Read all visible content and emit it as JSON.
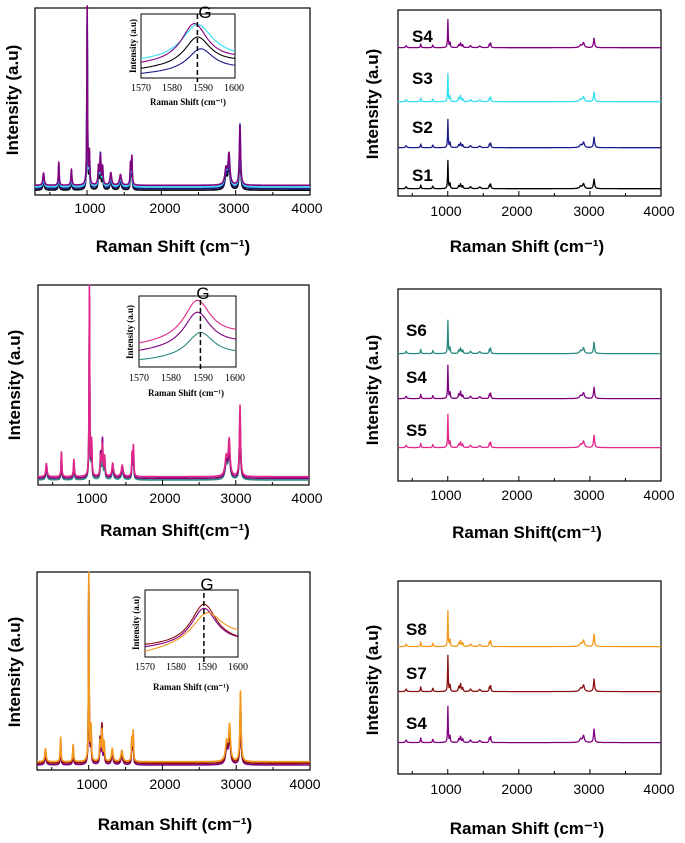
{
  "chart_data": [
    {
      "type": "line",
      "panel": "top-left overlay",
      "xlabel": "Raman Shift (cm⁻¹)",
      "ylabel": "Intensity (a.u)",
      "xlim": [
        300,
        4000
      ],
      "xticks": [
        "1000",
        "2000",
        "3000",
        "4000"
      ],
      "series": [
        {
          "name": "S1",
          "color": "#000000"
        },
        {
          "name": "S2",
          "color": "#1c1c8c"
        },
        {
          "name": "S3",
          "color": "#33e0f0"
        },
        {
          "name": "S4",
          "color": "#800080"
        }
      ],
      "inset": {
        "xlabel": "Raman Shift (cm⁻¹)",
        "ylabel": "Intensity (a.u)",
        "xlim": [
          1570,
          1600
        ],
        "xticks": [
          "1570",
          "1580",
          "1590",
          "1600"
        ],
        "marker_label": "G",
        "marker_x": 1588
      }
    },
    {
      "type": "line",
      "panel": "top-right stacked",
      "xlabel": "Raman Shift (cm⁻¹)",
      "ylabel": "Intensity (a.u)",
      "xlim": [
        300,
        4000
      ],
      "xticks": [
        "1000",
        "2000",
        "3000",
        "4000"
      ],
      "stack": [
        {
          "name": "S4",
          "color": "#800080"
        },
        {
          "name": "S3",
          "color": "#33e0f0"
        },
        {
          "name": "S2",
          "color": "#1c1c8c"
        },
        {
          "name": "S1",
          "color": "#000000"
        }
      ]
    },
    {
      "type": "line",
      "panel": "middle-left overlay",
      "xlabel": "Raman Shift(cm⁻¹)",
      "ylabel": "Intensity (a.u)",
      "xlim": [
        300,
        4000
      ],
      "xticks": [
        "1000",
        "2000",
        "3000",
        "4000"
      ],
      "series": [
        {
          "name": "S6",
          "color": "#2a8a7e"
        },
        {
          "name": "S4",
          "color": "#800080"
        },
        {
          "name": "S5",
          "color": "#e0288a"
        }
      ],
      "inset": {
        "xlabel": "Raman Shift (cm⁻¹)",
        "ylabel": "Intensity (a.u)",
        "xlim": [
          1570,
          1600
        ],
        "xticks": [
          "1570",
          "1580",
          "1590",
          "1600"
        ],
        "marker_label": "G",
        "marker_x": 1589
      }
    },
    {
      "type": "line",
      "panel": "middle-right stacked",
      "xlabel": "Raman Shift(cm⁻¹)",
      "ylabel": "Intensity (a.u)",
      "xlim": [
        300,
        4000
      ],
      "xticks": [
        "1000",
        "2000",
        "3000",
        "4000"
      ],
      "stack": [
        {
          "name": "S6",
          "color": "#2a8a7e"
        },
        {
          "name": "S4",
          "color": "#800080"
        },
        {
          "name": "S5",
          "color": "#e0288a"
        }
      ]
    },
    {
      "type": "line",
      "panel": "bottom-left overlay",
      "xlabel": "Raman Shift (cm⁻¹)",
      "ylabel": "Intensity (a.u)",
      "xlim": [
        300,
        4000
      ],
      "xticks": [
        "1000",
        "2000",
        "3000",
        "4000"
      ],
      "series": [
        {
          "name": "S4",
          "color": "#800080"
        },
        {
          "name": "S7",
          "color": "#8b1010"
        },
        {
          "name": "S8",
          "color": "#f39a1e"
        }
      ],
      "inset": {
        "xlabel": "Raman Shift (cm⁻¹)",
        "ylabel": "Intensity (a.u)",
        "xlim": [
          1570,
          1600
        ],
        "xticks": [
          "1570",
          "1580",
          "1590",
          "1600"
        ],
        "marker_label": "G",
        "marker_x": 1589
      }
    },
    {
      "type": "line",
      "panel": "bottom-right stacked",
      "xlabel": "Raman Shift (cm⁻¹)",
      "ylabel": "Intensity (a.u)",
      "xlim": [
        300,
        4000
      ],
      "xticks": [
        "1000",
        "2000",
        "3000",
        "4000"
      ],
      "stack": [
        {
          "name": "S8",
          "color": "#f39a1e"
        },
        {
          "name": "S7",
          "color": "#8b1010"
        },
        {
          "name": "S4",
          "color": "#800080"
        }
      ]
    }
  ],
  "peaks": [
    {
      "x": 415,
      "h": 0.07,
      "w": 10
    },
    {
      "x": 620,
      "h": 0.13,
      "w": 6
    },
    {
      "x": 790,
      "h": 0.09,
      "w": 7
    },
    {
      "x": 1002,
      "h": 1.0,
      "w": 5
    },
    {
      "x": 1032,
      "h": 0.18,
      "w": 6
    },
    {
      "x": 1155,
      "h": 0.1,
      "w": 8
    },
    {
      "x": 1180,
      "h": 0.16,
      "w": 8
    },
    {
      "x": 1210,
      "h": 0.1,
      "w": 7
    },
    {
      "x": 1320,
      "h": 0.07,
      "w": 12
    },
    {
      "x": 1450,
      "h": 0.06,
      "w": 14
    },
    {
      "x": 1585,
      "h": 0.12,
      "w": 6
    },
    {
      "x": 1603,
      "h": 0.16,
      "w": 6
    },
    {
      "x": 2870,
      "h": 0.09,
      "w": 18
    },
    {
      "x": 2910,
      "h": 0.17,
      "w": 14
    },
    {
      "x": 3058,
      "h": 0.34,
      "w": 9
    }
  ]
}
